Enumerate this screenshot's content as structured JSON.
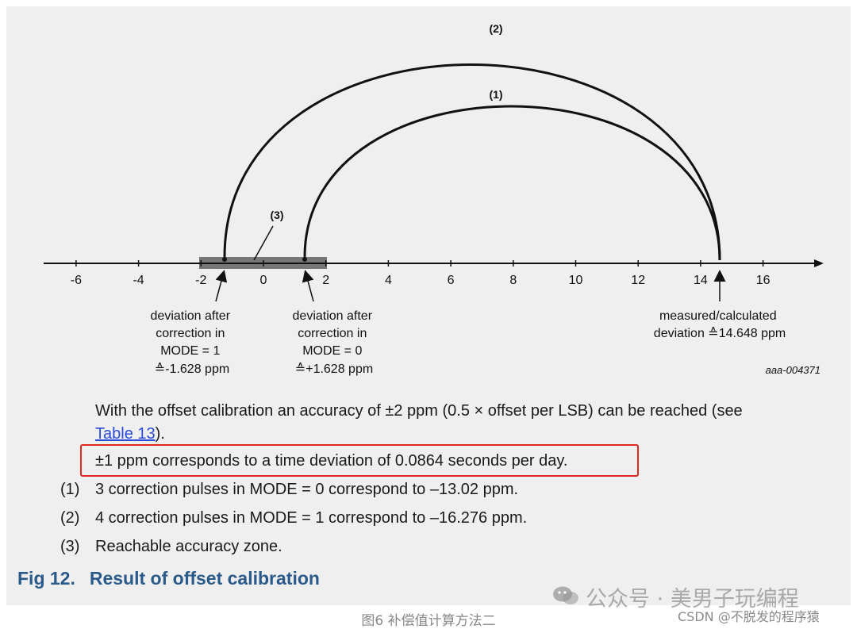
{
  "diagram": {
    "arc_labels": {
      "arc1": "(1)",
      "arc2": "(2)",
      "zone": "(3)"
    },
    "ticks": [
      "-6",
      "-4",
      "-2",
      "0",
      "2",
      "4",
      "6",
      "8",
      "10",
      "12",
      "14",
      "16"
    ],
    "label_mode1": [
      "deviation after",
      "correction in",
      "MODE = 1",
      "≙-1.628 ppm"
    ],
    "label_mode0": [
      "deviation after",
      "correction in",
      "MODE = 0",
      "≙+1.628 ppm"
    ],
    "label_measured": [
      "measured/calculated",
      "deviation ≙14.648 ppm"
    ],
    "figure_id": "aaa-004371",
    "colors": {
      "zone_fill": "#777777",
      "axis": "#111111"
    }
  },
  "text": {
    "para1_line1": "With the offset calibration an accuracy of ±2 ppm (0.5 × offset per LSB) can be reached (see",
    "para1_link": "Table 13",
    "para1_end": ").",
    "highlight": "±1 ppm corresponds to a time deviation of 0.0864 seconds per day.",
    "notes": [
      {
        "num": "(1)",
        "text": "3 correction pulses in MODE = 0 correspond to –13.02 ppm."
      },
      {
        "num": "(2)",
        "text": "4 correction pulses in MODE = 1 correspond to –16.276 ppm."
      },
      {
        "num": "(3)",
        "text": "Reachable accuracy zone."
      }
    ],
    "fig_number": "Fig 12.",
    "fig_title": "Result of offset calibration"
  },
  "watermark": {
    "main": "公众号 · 美男子玩编程",
    "csdn": "CSDN @不脱发的程序猿",
    "icon": "wechat-icon"
  },
  "caption": "图6 补偿值计算方法二",
  "colors": {
    "highlight_border": "#e0281e",
    "link": "#2a4bd7",
    "fig_title": "#2a5a8a"
  }
}
